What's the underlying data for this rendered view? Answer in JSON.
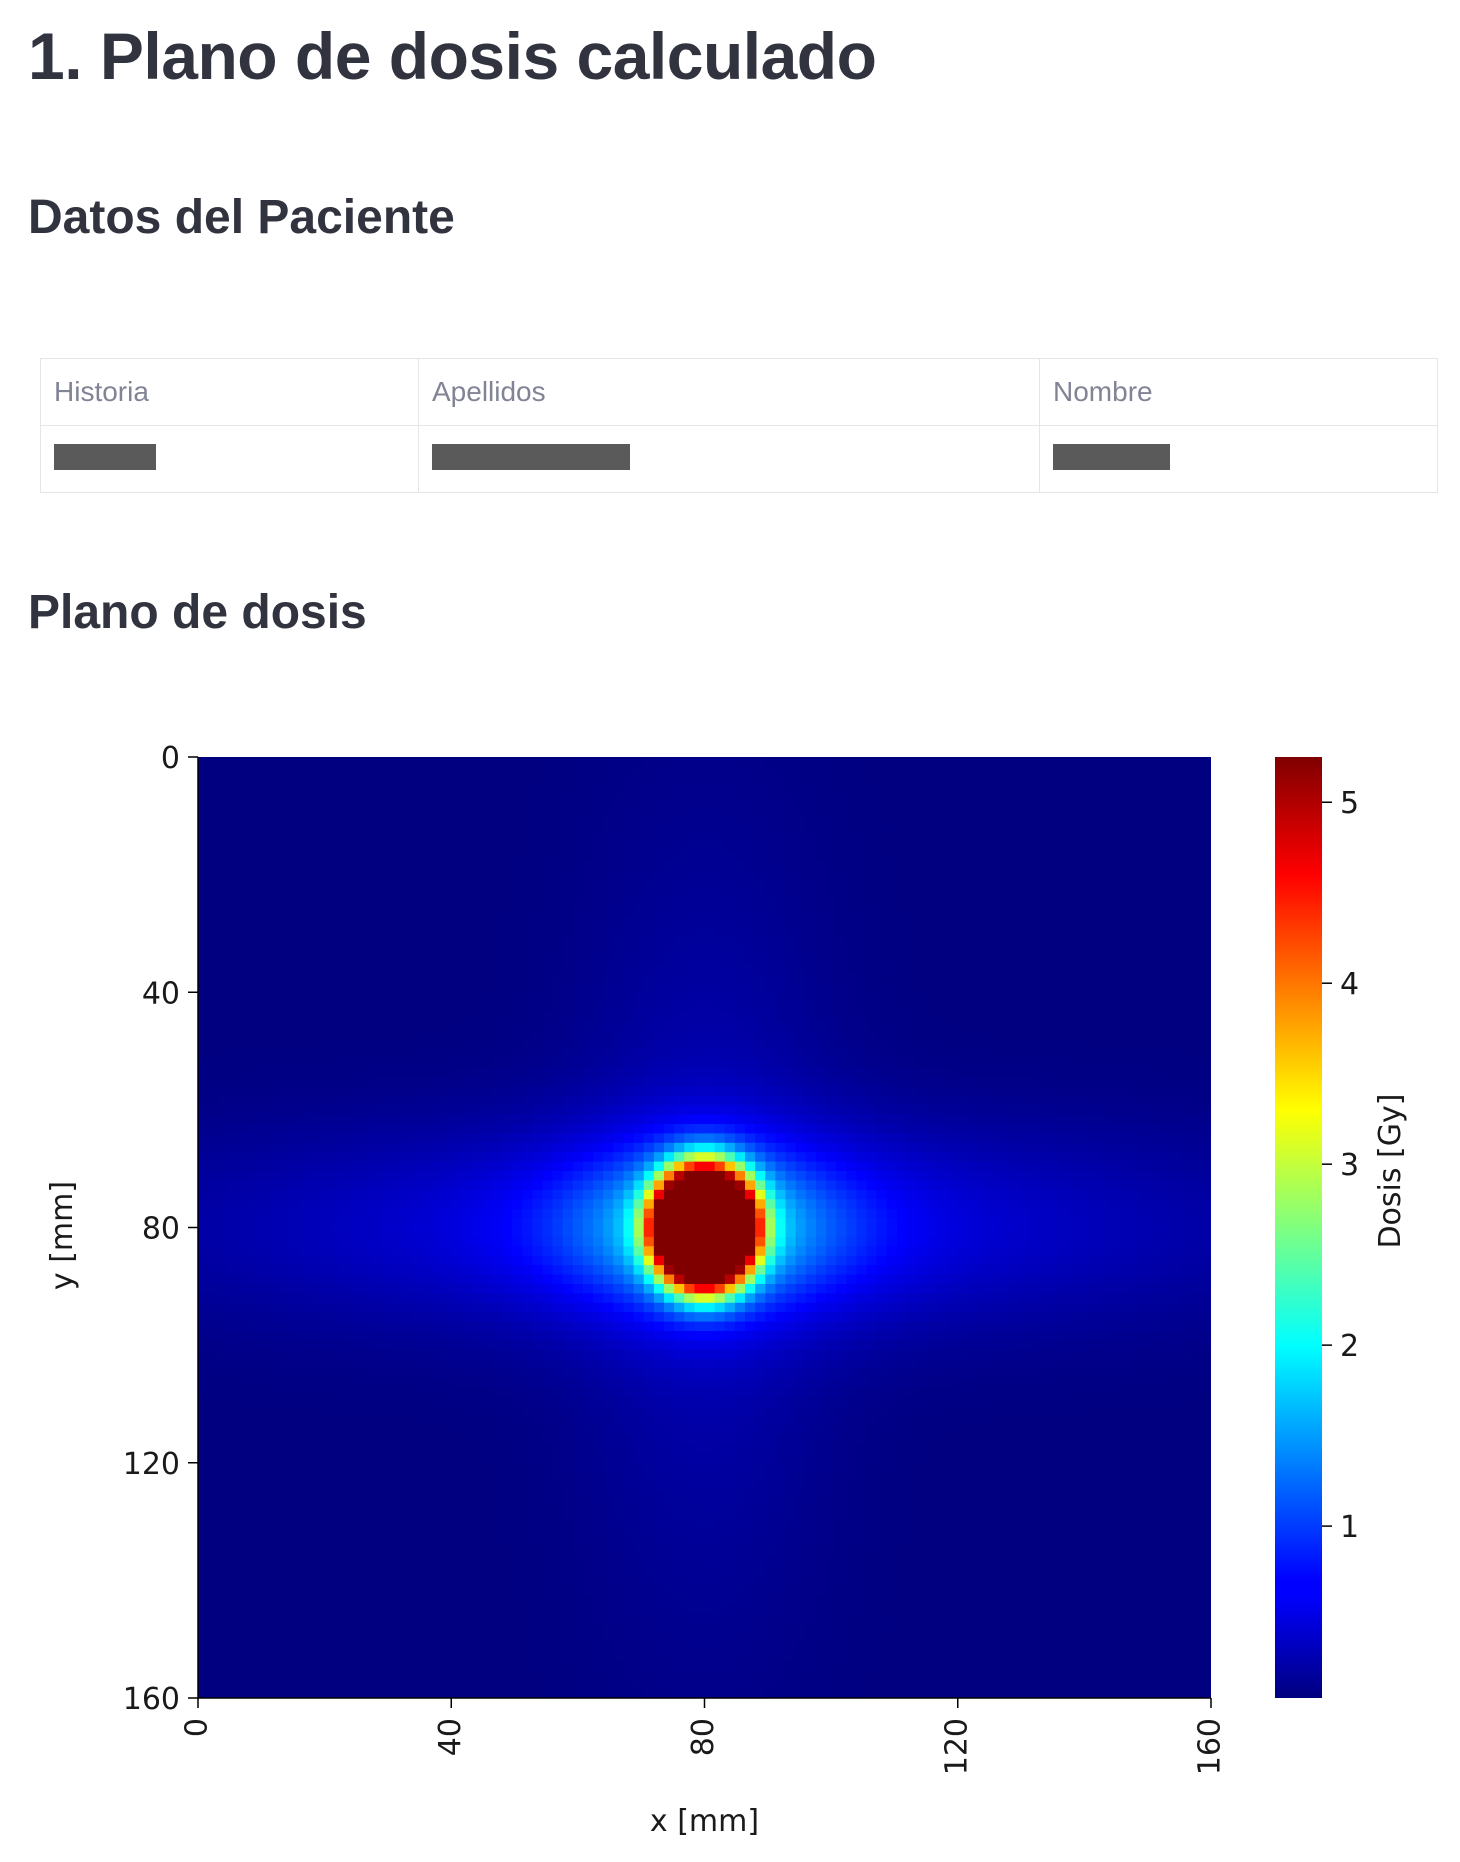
{
  "page": {
    "title": "1. Plano de dosis calculado",
    "patient_heading": "Datos del Paciente",
    "dose_heading": "Plano de dosis"
  },
  "patient_table": {
    "columns": [
      "Historia",
      "Apellidos",
      "Nombre"
    ],
    "row_redacted": [
      true,
      true,
      true
    ]
  },
  "chart_data": {
    "type": "heatmap",
    "xlabel": "x [mm]",
    "ylabel": "y [mm]",
    "x_ticks": [
      0,
      40,
      80,
      120,
      160
    ],
    "y_ticks": [
      0,
      40,
      80,
      120,
      160
    ],
    "xlim": [
      0,
      160
    ],
    "ylim": [
      160,
      0
    ],
    "colorbar_label": "Dosis [Gy]",
    "colorbar_ticks": [
      1,
      2,
      3,
      4,
      5
    ],
    "colorbar_range": [
      0.05,
      5.25
    ],
    "colormap": "jet",
    "dose_peak": {
      "x": 80,
      "y": 80,
      "value": 5.2
    },
    "grid": false
  }
}
